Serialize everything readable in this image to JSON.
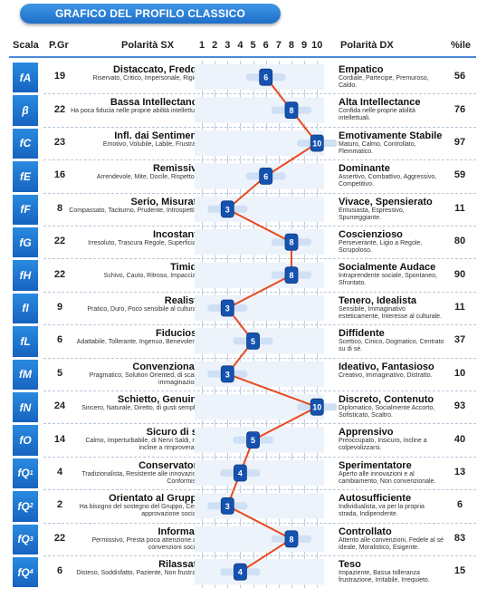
{
  "title": "GRAFICO DEL PROFILO CLASSICO",
  "headers": {
    "scala": "Scala",
    "pgr": "P.Gr",
    "sx": "Polarità SX",
    "dx": "Polarità DX",
    "pct": "%ile"
  },
  "chart_data": {
    "type": "line",
    "x_ticks": [
      "1",
      "2",
      "3",
      "4",
      "5",
      "6",
      "7",
      "8",
      "9",
      "10"
    ],
    "xlim": [
      1,
      10
    ],
    "rows": [
      {
        "scale": "fA",
        "sub": "",
        "pgr": "19",
        "sx_title": "Distaccato, Freddo",
        "sx_desc": "Riservato, Critico, Impersonale, Rigido.",
        "value": 6,
        "dx_title": "Empatico",
        "dx_desc": "Cordiale, Partecipe, Premuroso, Caldo.",
        "pct": "56"
      },
      {
        "scale": "β",
        "sub": "",
        "pgr": "22",
        "sx_title": "Bassa Intellectance",
        "sx_desc": "Ha poca fiducia nelle proprie abilità intellettuali.",
        "value": 8,
        "dx_title": "Alta Intellectance",
        "dx_desc": "Confida nelle proprie abilità intellettuali.",
        "pct": "76"
      },
      {
        "scale": "fC",
        "sub": "",
        "pgr": "23",
        "sx_title": "Infl. dai Sentimenti",
        "sx_desc": "Emotivo, Volubile, Labile, Frustrato.",
        "value": 10,
        "dx_title": "Emotivamente Stabile",
        "dx_desc": "Maturo, Calmo, Controllato, Flemmatico.",
        "pct": "97"
      },
      {
        "scale": "fE",
        "sub": "",
        "pgr": "16",
        "sx_title": "Remissivo",
        "sx_desc": "Arrendevole, Mite, Docile, Rispettoso.",
        "value": 6,
        "dx_title": "Dominante",
        "dx_desc": "Assertivo, Combattivo, Aggressivo, Competitivo.",
        "pct": "59"
      },
      {
        "scale": "fF",
        "sub": "",
        "pgr": "8",
        "sx_title": "Serio, Misurato",
        "sx_desc": "Compassato, Taciturno, Prudente, Introspettivo.",
        "value": 3,
        "dx_title": "Vivace, Spensierato",
        "dx_desc": "Entusiasta, Espressivo, Spumeggiante.",
        "pct": "11"
      },
      {
        "scale": "fG",
        "sub": "",
        "pgr": "22",
        "sx_title": "Incostante",
        "sx_desc": "Irresoluto, Trascura Regole, Superficiale.",
        "value": 8,
        "dx_title": "Coscienzioso",
        "dx_desc": "Perseverante, Ligio a Regole, Scrupoloso.",
        "pct": "80"
      },
      {
        "scale": "fH",
        "sub": "",
        "pgr": "22",
        "sx_title": "Timido",
        "sx_desc": "Schivo, Cauto, Ritroso, Impacciato.",
        "value": 8,
        "dx_title": "Socialmente Audace",
        "dx_desc": "Intraprendente sociale, Spontaneo, Sfrontato.",
        "pct": "90"
      },
      {
        "scale": "fI",
        "sub": "",
        "pgr": "9",
        "sx_title": "Realista",
        "sx_desc": "Pratico, Duro, Poco sensibile al culturale.",
        "value": 3,
        "dx_title": "Tenero, Idealista",
        "dx_desc": "Sensibile, Immaginativo esteticamente, Interesse al culturale.",
        "pct": "11"
      },
      {
        "scale": "fL",
        "sub": "",
        "pgr": "6",
        "sx_title": "Fiducioso",
        "sx_desc": "Adattabile, Tollerante, Ingenuo, Benevolente.",
        "value": 5,
        "dx_title": "Diffidente",
        "dx_desc": "Scettico, Cinico, Dogmatico, Centrato su di sé.",
        "pct": "37"
      },
      {
        "scale": "fM",
        "sub": "",
        "pgr": "5",
        "sx_title": "Convenzionale",
        "sx_desc": "Pragmatico, Solution Oriented, di scarsa immaginazione.",
        "value": 3,
        "dx_title": "Ideativo, Fantasioso",
        "dx_desc": "Creativo, Immaginativo, Distratto.",
        "pct": "10"
      },
      {
        "scale": "fN",
        "sub": "",
        "pgr": "24",
        "sx_title": "Schietto, Genuino",
        "sx_desc": "Sincero, Naturale, Diretto, di gusti semplici.",
        "value": 10,
        "dx_title": "Discreto, Contenuto",
        "dx_desc": "Diplomatico, Socialmente Accorto, Sofisticato, Scaltro.",
        "pct": "93"
      },
      {
        "scale": "fO",
        "sub": "",
        "pgr": "14",
        "sx_title": "Sicuro di sé",
        "sx_desc": "Calmo, Imperturbabile, di Nervi Saldi, non incline a rimproverarsi.",
        "value": 5,
        "dx_title": "Apprensivo",
        "dx_desc": "Preoccupato, Insicuro, Incline a colpevolizzarsi.",
        "pct": "40"
      },
      {
        "scale": "fQ",
        "sub": "1",
        "pgr": "4",
        "sx_title": "Conservatore",
        "sx_desc": "Tradizionalista, Resistente alle innovazioni, Conformista.",
        "value": 4,
        "dx_title": "Sperimentatore",
        "dx_desc": "Aperto alle innovazioni e al cambiamento, Non convenzionale.",
        "pct": "13"
      },
      {
        "scale": "fQ",
        "sub": "2",
        "pgr": "2",
        "sx_title": "Orientato al Gruppo",
        "sx_desc": "Ha bisogno del sostegno del Gruppo, Cerca approvazione sociale.",
        "value": 3,
        "dx_title": "Autosufficiente",
        "dx_desc": "Individualista, va per la propria strada, Indipendente.",
        "pct": "6"
      },
      {
        "scale": "fQ",
        "sub": "3",
        "pgr": "22",
        "sx_title": "Informale",
        "sx_desc": "Permissivo, Presta poca attenzione alle convenzioni sociali.",
        "value": 8,
        "dx_title": "Controllato",
        "dx_desc": "Attento alle convenzioni, Fedele al sé ideale, Moralistico, Esigente.",
        "pct": "83"
      },
      {
        "scale": "fQ",
        "sub": "4",
        "pgr": "6",
        "sx_title": "Rilassato",
        "sx_desc": "Disteso, Soddisfatto, Paziente, Non frustrato.",
        "value": 4,
        "dx_title": "Teso",
        "dx_desc": "Impaziente, Bassa tolleranza frustrazione, Irritabile, Irrequieto.",
        "pct": "15"
      }
    ]
  },
  "colors": {
    "line": "#e84a1e",
    "marker": "#1552b0",
    "band": "#cfe0f5",
    "scale_bg": "#1e70cc"
  }
}
